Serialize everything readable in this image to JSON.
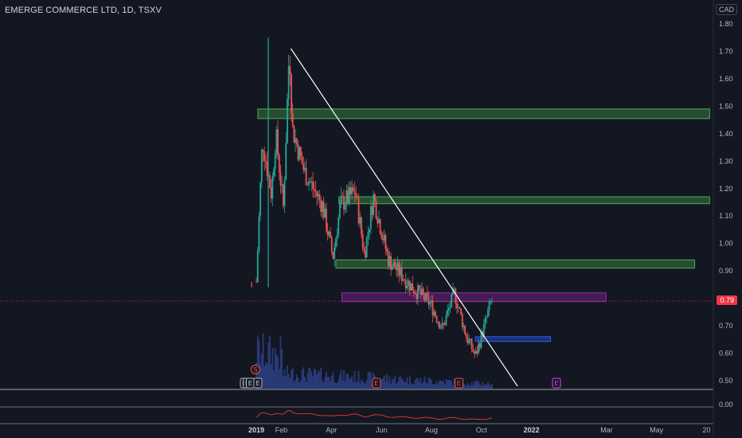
{
  "header": {
    "symbol": "EMERGE COMMERCE LTD",
    "interval": "1D",
    "exchange": "TSXV",
    "currency": "CAD"
  },
  "colors": {
    "background": "#131722",
    "up": "#26a69a",
    "down": "#ef5350",
    "zone_green": "#4caf50",
    "zone_purple": "#9c27b0",
    "zone_blue": "#2962ff",
    "trendline": "#ffffff",
    "volume": "#2a3a78",
    "indicator": "#e53935",
    "price_tag": "#f23645"
  },
  "chart_data": {
    "type": "candlestick",
    "y_axis": {
      "range": [
        0.45,
        1.84
      ],
      "ticks": [
        "1.80",
        "1.70",
        "1.60",
        "1.50",
        "1.40",
        "1.30",
        "1.20",
        "1.10",
        "1.00",
        "0.90",
        "0.80",
        "0.70",
        "0.60",
        "0.50"
      ]
    },
    "x_axis": {
      "ticks": [
        {
          "label": "2019",
          "pos": 0.0
        },
        {
          "label": "Feb",
          "pos": 0.0833
        },
        {
          "label": "Apr",
          "pos": 0.25
        },
        {
          "label": "Jun",
          "pos": 0.4167
        },
        {
          "label": "Aug",
          "pos": 0.5833
        },
        {
          "label": "Oct",
          "pos": 0.75
        },
        {
          "label": "2022",
          "pos": 0.9167
        },
        {
          "label": "Mar",
          "pos": 1.1667
        },
        {
          "label": "May",
          "pos": 1.3333
        },
        {
          "label": "20",
          "pos": 1.5
        }
      ]
    },
    "price_path": [
      [
        0.0,
        0.86
      ],
      [
        0.02,
        1.38
      ],
      [
        0.05,
        1.18
      ],
      [
        0.065,
        1.4
      ],
      [
        0.09,
        1.13
      ],
      [
        0.11,
        1.72
      ],
      [
        0.12,
        1.42
      ],
      [
        0.16,
        1.26
      ],
      [
        0.22,
        1.14
      ],
      [
        0.255,
        0.95
      ],
      [
        0.28,
        1.14
      ],
      [
        0.33,
        1.19
      ],
      [
        0.36,
        0.96
      ],
      [
        0.39,
        1.17
      ],
      [
        0.44,
        0.94
      ],
      [
        0.52,
        0.84
      ],
      [
        0.58,
        0.78
      ],
      [
        0.62,
        0.69
      ],
      [
        0.66,
        0.82
      ],
      [
        0.7,
        0.66
      ],
      [
        0.73,
        0.59
      ],
      [
        0.76,
        0.7
      ],
      [
        0.785,
        0.8
      ]
    ],
    "current_price": "0.79",
    "zones": [
      {
        "color": "green",
        "x0": 0.005,
        "x1": 1.51,
        "y0": 1.455,
        "y1": 1.49
      },
      {
        "color": "green",
        "x0": 0.275,
        "x1": 1.51,
        "y0": 1.145,
        "y1": 1.17
      },
      {
        "color": "green",
        "x0": 0.265,
        "x1": 1.46,
        "y0": 0.91,
        "y1": 0.94
      },
      {
        "color": "purple",
        "x0": 0.285,
        "x1": 1.165,
        "y0": 0.788,
        "y1": 0.82
      },
      {
        "color": "blue",
        "x0": 0.73,
        "x1": 0.98,
        "y0": 0.643,
        "y1": 0.66
      }
    ],
    "trendline": {
      "x0": 0.115,
      "y0": 1.71,
      "x1": 0.87,
      "y1": 0.48
    },
    "event_markers": [
      {
        "label": "S",
        "pos": -0.003,
        "kind": "split"
      },
      {
        "label": "E",
        "pos": -0.04,
        "kind": "earnings-past"
      },
      {
        "label": "E",
        "pos": -0.03,
        "kind": "earnings-past"
      },
      {
        "label": "E",
        "pos": -0.02,
        "kind": "earnings-past"
      },
      {
        "label": "E",
        "pos": 0.005,
        "kind": "earnings-past"
      },
      {
        "label": "E",
        "pos": 0.4,
        "kind": "earnings"
      },
      {
        "label": "E",
        "pos": 0.675,
        "kind": "earnings"
      },
      {
        "label": "E",
        "pos": 1.0,
        "kind": "earnings-future"
      }
    ],
    "indicator_pane": {
      "tick": "0.00"
    }
  }
}
